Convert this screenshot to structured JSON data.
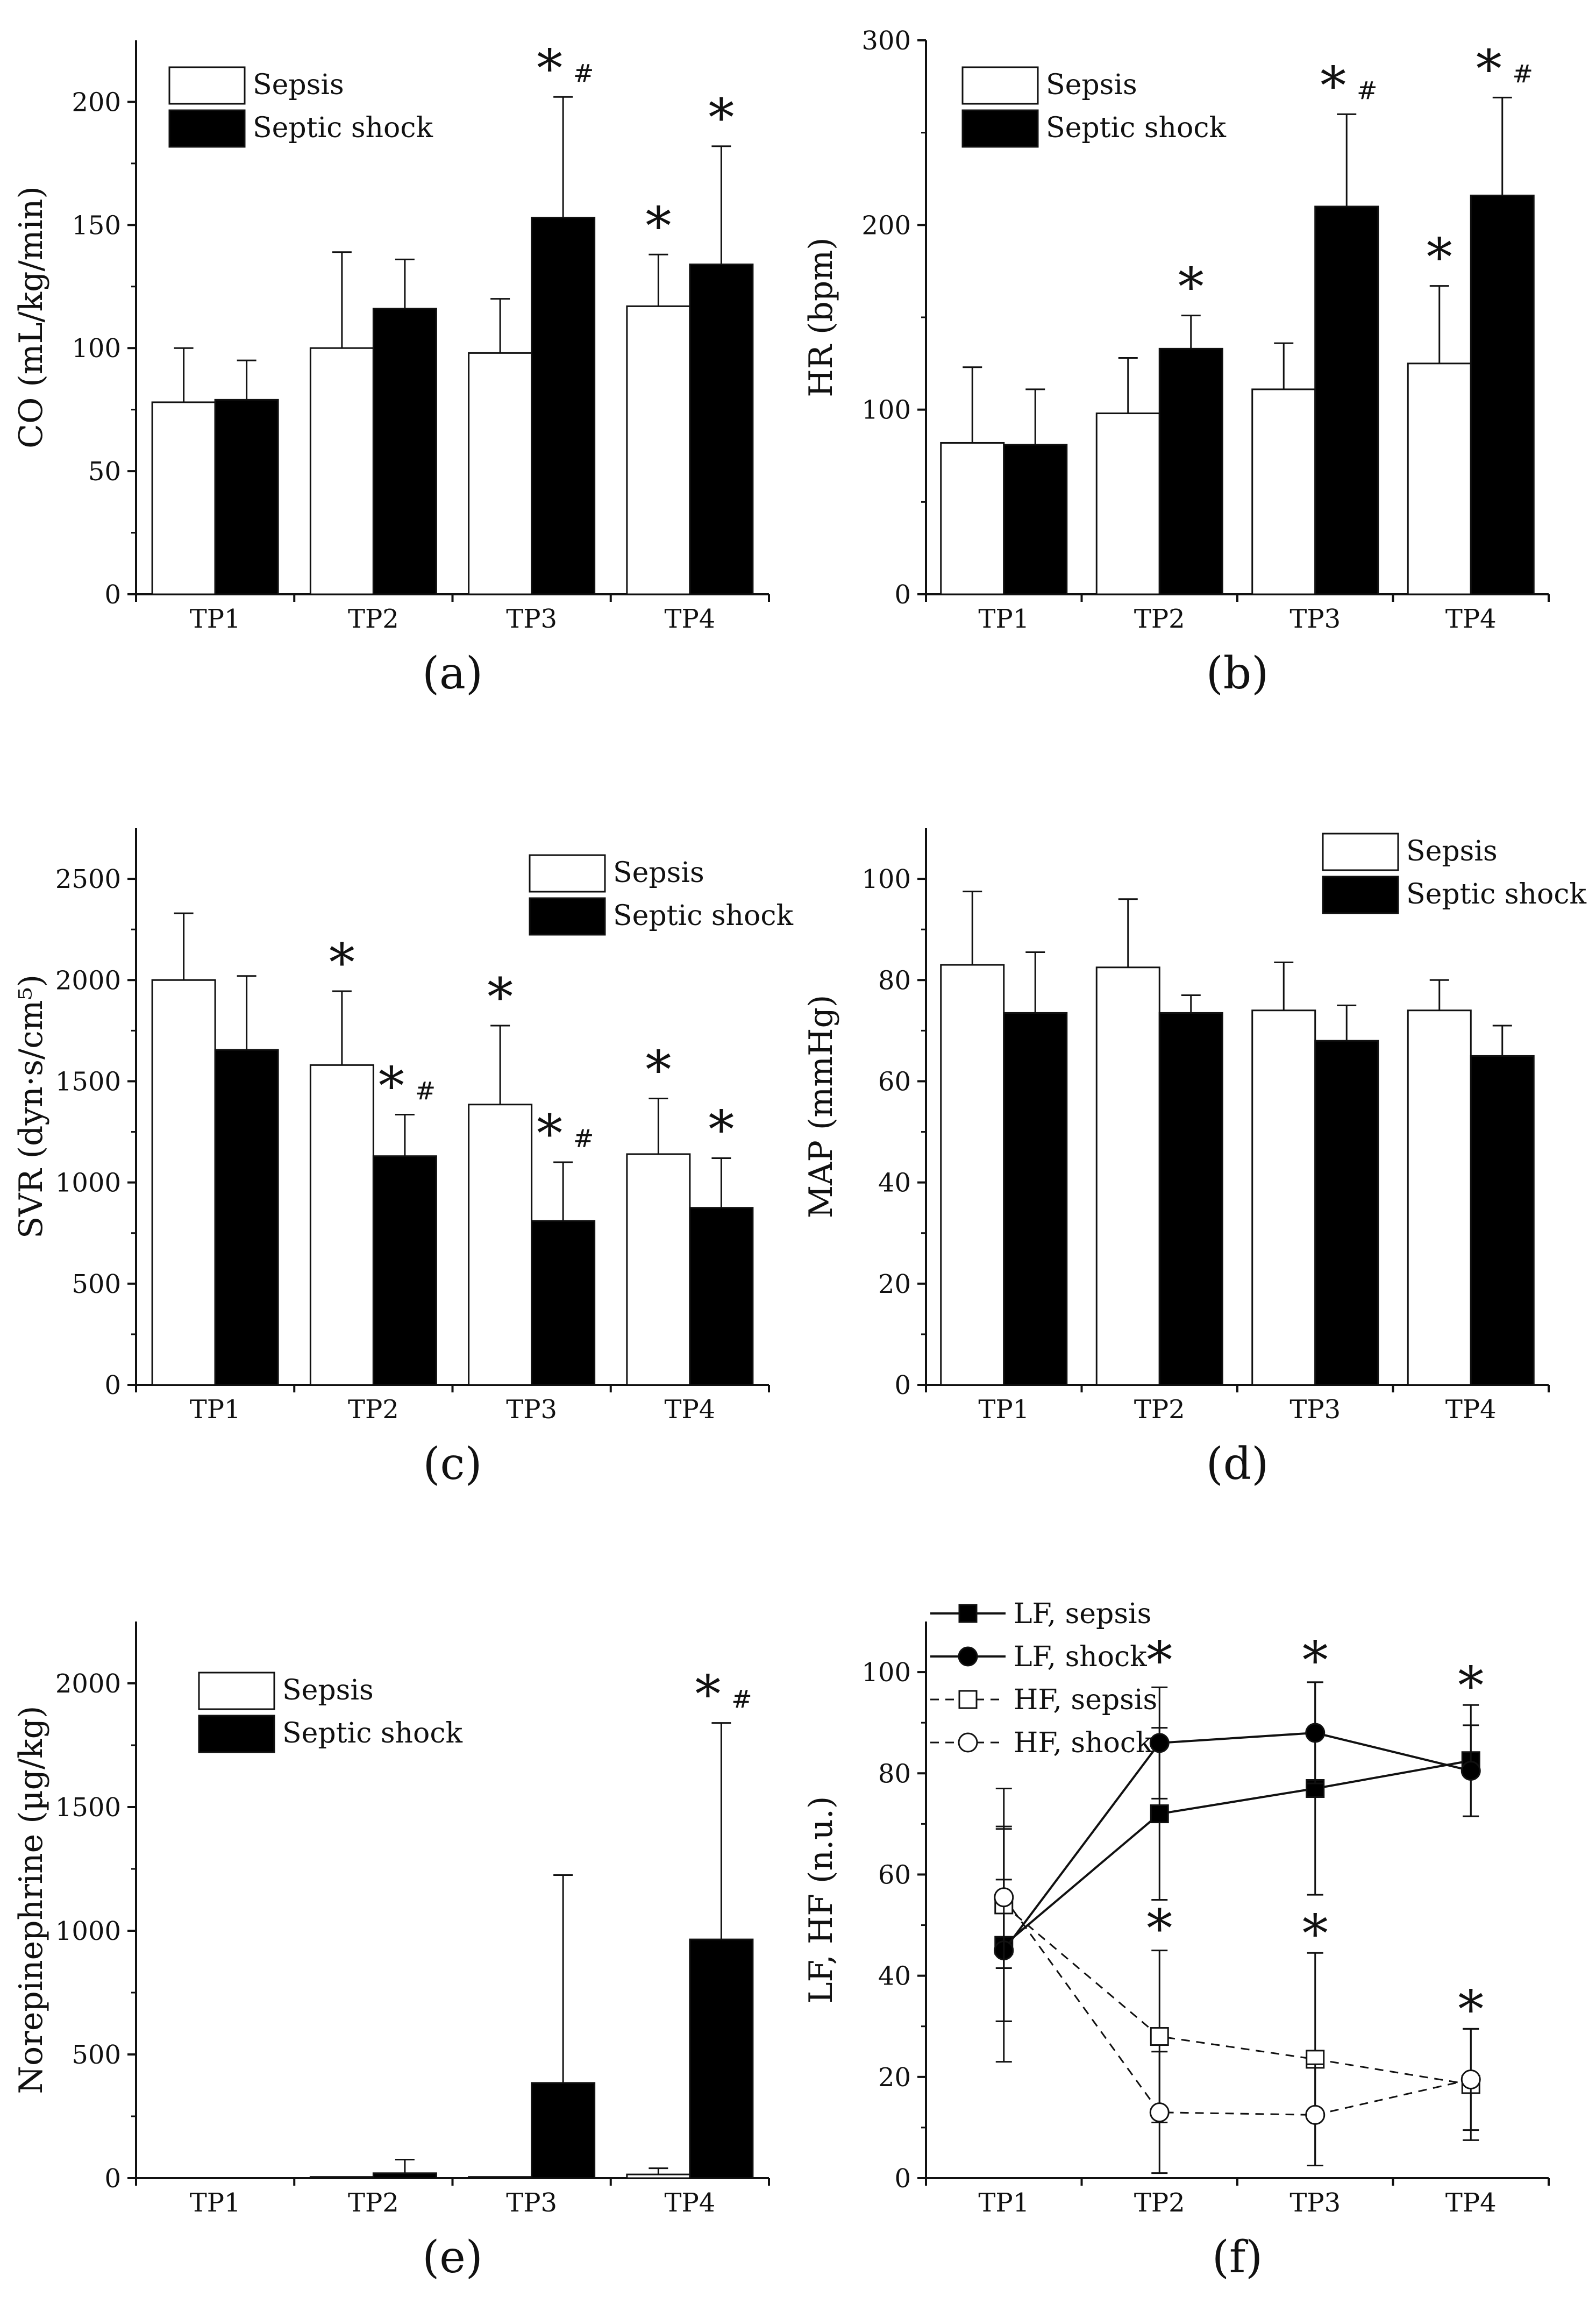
{
  "figure": {
    "background": "#ffffff",
    "sepsis_color": "#ffffff",
    "shock_color": "#000000"
  },
  "chart_data": [
    {
      "id": "a",
      "panel_label": "(a)",
      "type": "bar",
      "ylabel": "CO (mL/kg/min)",
      "ylim": [
        0,
        225
      ],
      "yticks": [
        0,
        50,
        100,
        150,
        200
      ],
      "ytick_labels": [
        "0",
        "50",
        "100",
        "150",
        "200"
      ],
      "yminor": 25,
      "categories": [
        "TP1",
        "TP2",
        "TP3",
        "TP4"
      ],
      "legend": {
        "position": "top-left",
        "entries": [
          "Sepsis",
          "Septic shock"
        ]
      },
      "series": [
        {
          "name": "Sepsis",
          "values": [
            78,
            100,
            98,
            117
          ],
          "err": [
            22,
            39,
            22,
            21
          ],
          "stars": [
            false,
            false,
            false,
            true
          ],
          "hash": [
            false,
            false,
            false,
            false
          ]
        },
        {
          "name": "Septic shock",
          "values": [
            79,
            116,
            153,
            134
          ],
          "err": [
            16,
            20,
            49,
            48
          ],
          "stars": [
            false,
            false,
            true,
            true
          ],
          "hash": [
            false,
            false,
            true,
            false
          ]
        }
      ]
    },
    {
      "id": "b",
      "panel_label": "(b)",
      "type": "bar",
      "ylabel": "HR (bpm)",
      "ylim": [
        0,
        300
      ],
      "yticks": [
        0,
        100,
        200,
        300
      ],
      "ytick_labels": [
        "0",
        "100",
        "200",
        "300"
      ],
      "yminor": 50,
      "categories": [
        "TP1",
        "TP2",
        "TP3",
        "TP4"
      ],
      "legend": {
        "position": "top-left",
        "entries": [
          "Sepsis",
          "Septic shock"
        ]
      },
      "series": [
        {
          "name": "Sepsis",
          "values": [
            82,
            98,
            111,
            125
          ],
          "err": [
            41,
            30,
            25,
            42
          ],
          "stars": [
            false,
            false,
            false,
            true
          ],
          "hash": [
            false,
            false,
            false,
            false
          ]
        },
        {
          "name": "Septic shock",
          "values": [
            81,
            133,
            210,
            216
          ],
          "err": [
            30,
            18,
            50,
            53
          ],
          "stars": [
            false,
            true,
            true,
            true
          ],
          "hash": [
            false,
            false,
            true,
            true
          ]
        }
      ]
    },
    {
      "id": "c",
      "panel_label": "(c)",
      "type": "bar",
      "ylabel": "SVR (dyn·s/cm⁵)",
      "ylim": [
        0,
        2750
      ],
      "yticks": [
        0,
        500,
        1000,
        1500,
        2000,
        2500
      ],
      "ytick_labels": [
        "0",
        "500",
        "1000",
        "1500",
        "2000",
        "2500"
      ],
      "yminor": 250,
      "categories": [
        "TP1",
        "TP2",
        "TP3",
        "TP4"
      ],
      "legend": {
        "position": "top-right",
        "entries": [
          "Sepsis",
          "Septic shock"
        ]
      },
      "series": [
        {
          "name": "Sepsis",
          "values": [
            2000,
            1580,
            1385,
            1140
          ],
          "err": [
            330,
            365,
            390,
            275
          ],
          "stars": [
            false,
            true,
            true,
            true
          ],
          "hash": [
            false,
            false,
            false,
            false
          ]
        },
        {
          "name": "Septic shock",
          "values": [
            1655,
            1130,
            810,
            875
          ],
          "err": [
            365,
            205,
            290,
            245
          ],
          "stars": [
            false,
            true,
            true,
            true
          ],
          "hash": [
            false,
            true,
            true,
            false
          ]
        }
      ]
    },
    {
      "id": "d",
      "panel_label": "(d)",
      "type": "bar",
      "ylabel": "MAP (mmHg)",
      "ylim": [
        0,
        110
      ],
      "yticks": [
        0,
        20,
        40,
        60,
        80,
        100
      ],
      "ytick_labels": [
        "0",
        "20",
        "40",
        "60",
        "80",
        "100"
      ],
      "yminor": 10,
      "categories": [
        "TP1",
        "TP2",
        "TP3",
        "TP4"
      ],
      "legend": {
        "position": "top-right",
        "entries": [
          "Sepsis",
          "Septic shock"
        ]
      },
      "series": [
        {
          "name": "Sepsis",
          "values": [
            83,
            82.5,
            74,
            74
          ],
          "err": [
            14.5,
            13.5,
            9.5,
            6
          ],
          "stars": [
            false,
            false,
            false,
            false
          ],
          "hash": [
            false,
            false,
            false,
            false
          ]
        },
        {
          "name": "Septic shock",
          "values": [
            73.5,
            73.5,
            68,
            65
          ],
          "err": [
            12,
            3.5,
            7,
            6
          ],
          "stars": [
            false,
            false,
            false,
            false
          ],
          "hash": [
            false,
            false,
            false,
            false
          ]
        }
      ]
    },
    {
      "id": "e",
      "panel_label": "(e)",
      "type": "bar",
      "ylabel": "Norepinephrine (µg/kg)",
      "ylim": [
        0,
        2250
      ],
      "yticks": [
        0,
        500,
        1000,
        1500,
        2000
      ],
      "ytick_labels": [
        "0",
        "500",
        "1000",
        "1500",
        "2000"
      ],
      "yminor": 250,
      "categories": [
        "TP1",
        "TP2",
        "TP3",
        "TP4"
      ],
      "legend": {
        "position": "top-left",
        "entries": [
          "Sepsis",
          "Septic shock"
        ]
      },
      "series": [
        {
          "name": "Sepsis",
          "values": [
            0,
            5,
            5,
            15
          ],
          "err": [
            0,
            0,
            0,
            25
          ],
          "stars": [
            false,
            false,
            false,
            false
          ],
          "hash": [
            false,
            false,
            false,
            false
          ]
        },
        {
          "name": "Septic shock",
          "values": [
            0,
            20,
            385,
            965
          ],
          "err": [
            0,
            55,
            840,
            875
          ],
          "stars": [
            false,
            false,
            false,
            true
          ],
          "hash": [
            false,
            false,
            false,
            true
          ]
        }
      ]
    },
    {
      "id": "f",
      "panel_label": "(f)",
      "type": "line",
      "ylabel": "LF, HF (n.u.)",
      "ylim": [
        0,
        110
      ],
      "yticks": [
        0,
        20,
        40,
        60,
        80,
        100
      ],
      "ytick_labels": [
        "0",
        "20",
        "40",
        "60",
        "80",
        "100"
      ],
      "yminor": 10,
      "categories": [
        "TP1",
        "TP2",
        "TP3",
        "TP4"
      ],
      "legend": {
        "position": "top-left",
        "entries": [
          "LF, sepsis",
          "LF, shock",
          "HF, sepsis",
          "HF, shock"
        ]
      },
      "series": [
        {
          "name": "LF, sepsis",
          "marker": "square",
          "filled": true,
          "dashed": false,
          "values": [
            46,
            72,
            77,
            82.5
          ],
          "err": [
            23,
            17,
            21,
            11
          ]
        },
        {
          "name": "LF, shock",
          "marker": "circle",
          "filled": true,
          "dashed": false,
          "values": [
            45,
            86,
            88,
            80.5
          ],
          "err": [
            14,
            11,
            10,
            9
          ]
        },
        {
          "name": "HF, sepsis",
          "marker": "square",
          "filled": false,
          "dashed": true,
          "values": [
            54,
            28,
            23.5,
            18.5
          ],
          "err": [
            23,
            17,
            21,
            11
          ]
        },
        {
          "name": "HF, shock",
          "marker": "circle",
          "filled": false,
          "dashed": true,
          "values": [
            55.5,
            13,
            12.5,
            19.5
          ],
          "err": [
            14,
            12,
            10,
            10
          ]
        }
      ],
      "star_positions": [
        {
          "category": "TP2",
          "value": 102
        },
        {
          "category": "TP3",
          "value": 102
        },
        {
          "category": "TP4",
          "value": 97
        },
        {
          "category": "TP2",
          "value": 49
        },
        {
          "category": "TP3",
          "value": 48
        },
        {
          "category": "TP4",
          "value": 33
        }
      ]
    }
  ]
}
